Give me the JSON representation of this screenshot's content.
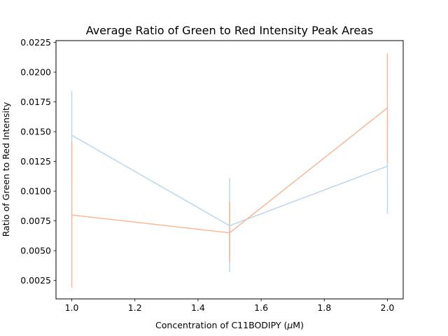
{
  "chart_data": {
    "type": "line",
    "title": "Average Ratio of Green to Red Intensity Peak Areas",
    "xlabel": "Concentration of C11BODIPY (",
    "xlabel_mu": "μ",
    "xlabel_tail": "M)",
    "ylabel": "Ratio of Green to Red Intensity",
    "xlim": [
      0.95,
      2.05
    ],
    "ylim": [
      0.00095,
      0.02265
    ],
    "xticks": [
      1.0,
      1.2,
      1.4,
      1.6,
      1.8,
      2.0
    ],
    "xtick_labels": [
      "1.0",
      "1.2",
      "1.4",
      "1.6",
      "1.8",
      "2.0"
    ],
    "yticks": [
      0.0025,
      0.005,
      0.0075,
      0.01,
      0.0125,
      0.015,
      0.0175,
      0.02,
      0.0225
    ],
    "ytick_labels": [
      "0.0025",
      "0.0050",
      "0.0075",
      "0.0100",
      "0.0125",
      "0.0150",
      "0.0175",
      "0.0200",
      "0.0225"
    ],
    "grid": false,
    "legend": false,
    "x": [
      1.0,
      1.5,
      2.0
    ],
    "series": [
      {
        "values": [
          0.0147,
          0.0071,
          0.0121
        ],
        "err_low": [
          0.0108,
          0.0032,
          0.0081
        ],
        "err_high": [
          0.0184,
          0.0111,
          0.0161
        ],
        "color": "#bcd6ec"
      },
      {
        "values": [
          0.008,
          0.0065,
          0.017
        ],
        "err_low": [
          0.0019,
          0.004,
          0.0124
        ],
        "err_high": [
          0.0142,
          0.0091,
          0.0216
        ],
        "color": "#f9b897"
      }
    ]
  }
}
